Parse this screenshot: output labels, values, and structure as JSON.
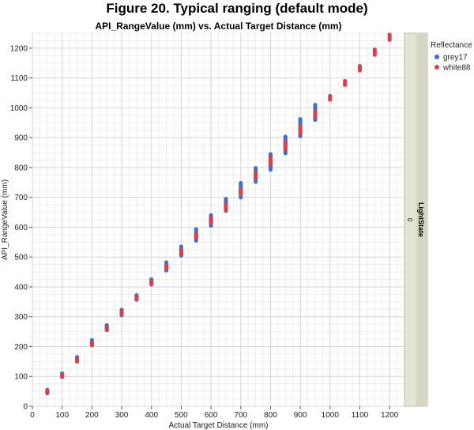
{
  "figure_title": "Figure 20. Typical ranging (default mode)",
  "colors": {
    "grey17": "#3b6fd4",
    "white88": "#d9404a",
    "strip": "#dcdccb"
  },
  "chart_data": {
    "type": "scatter",
    "title": "API_RangeValue (mm) vs. Actual Target Distance (mm)",
    "xlabel": "Actual Target Distance (mm)",
    "ylabel": "API_RangeValue (mm)",
    "xlim": [
      0,
      1250
    ],
    "ylim": [
      0,
      1250
    ],
    "xticks": [
      "0",
      "100",
      "200",
      "300",
      "400",
      "500",
      "600",
      "700",
      "800",
      "900",
      "1000",
      "1100",
      "1200"
    ],
    "yticks": [
      "0",
      "100",
      "200",
      "300",
      "400",
      "500",
      "600",
      "700",
      "800",
      "900",
      "1000",
      "1100",
      "1200"
    ],
    "grid": true,
    "legend": {
      "title": "Reflectance",
      "position": "right"
    },
    "facet_label": "LightState",
    "facet_value": "0",
    "series": [
      {
        "name": "grey17",
        "color": "#3b6fd4",
        "points": [
          {
            "x": 50,
            "min": 44,
            "max": 55
          },
          {
            "x": 100,
            "min": 98,
            "max": 110
          },
          {
            "x": 150,
            "min": 150,
            "max": 165
          },
          {
            "x": 200,
            "min": 205,
            "max": 222
          },
          {
            "x": 250,
            "min": 255,
            "max": 272
          },
          {
            "x": 300,
            "min": 305,
            "max": 323
          },
          {
            "x": 350,
            "min": 357,
            "max": 372
          },
          {
            "x": 400,
            "min": 408,
            "max": 425
          },
          {
            "x": 450,
            "min": 455,
            "max": 482
          },
          {
            "x": 500,
            "min": 505,
            "max": 535
          },
          {
            "x": 550,
            "min": 555,
            "max": 593
          },
          {
            "x": 600,
            "min": 605,
            "max": 640
          },
          {
            "x": 650,
            "min": 655,
            "max": 695
          },
          {
            "x": 700,
            "min": 700,
            "max": 748
          },
          {
            "x": 750,
            "min": 752,
            "max": 798
          },
          {
            "x": 800,
            "min": 793,
            "max": 845
          },
          {
            "x": 850,
            "min": 848,
            "max": 903
          },
          {
            "x": 900,
            "min": 905,
            "max": 962
          },
          {
            "x": 950,
            "min": 960,
            "max": 1010
          }
        ]
      },
      {
        "name": "white88",
        "color": "#d9404a",
        "points": [
          {
            "x": 50,
            "min": 45,
            "max": 52
          },
          {
            "x": 100,
            "min": 100,
            "max": 106
          },
          {
            "x": 150,
            "min": 153,
            "max": 160
          },
          {
            "x": 200,
            "min": 205,
            "max": 213
          },
          {
            "x": 250,
            "min": 258,
            "max": 265
          },
          {
            "x": 300,
            "min": 310,
            "max": 318
          },
          {
            "x": 350,
            "min": 360,
            "max": 368
          },
          {
            "x": 400,
            "min": 410,
            "max": 420
          },
          {
            "x": 450,
            "min": 462,
            "max": 472
          },
          {
            "x": 500,
            "min": 512,
            "max": 525
          },
          {
            "x": 550,
            "min": 565,
            "max": 578
          },
          {
            "x": 600,
            "min": 615,
            "max": 630
          },
          {
            "x": 650,
            "min": 660,
            "max": 680
          },
          {
            "x": 700,
            "min": 712,
            "max": 728
          },
          {
            "x": 750,
            "min": 765,
            "max": 785
          },
          {
            "x": 800,
            "min": 810,
            "max": 835
          },
          {
            "x": 850,
            "min": 862,
            "max": 885
          },
          {
            "x": 900,
            "min": 915,
            "max": 940
          },
          {
            "x": 950,
            "min": 970,
            "max": 990
          },
          {
            "x": 1000,
            "min": 1027,
            "max": 1040
          },
          {
            "x": 1050,
            "min": 1077,
            "max": 1090
          },
          {
            "x": 1100,
            "min": 1125,
            "max": 1140
          },
          {
            "x": 1150,
            "min": 1178,
            "max": 1195
          },
          {
            "x": 1200,
            "min": 1228,
            "max": 1245
          }
        ]
      }
    ]
  }
}
